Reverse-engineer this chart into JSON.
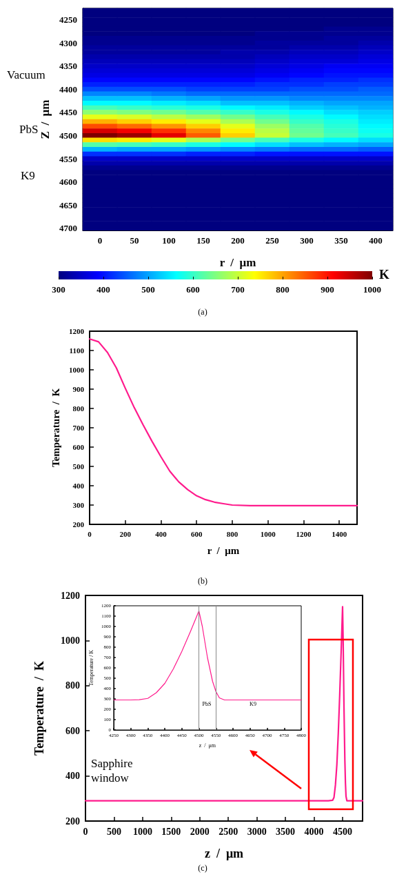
{
  "chart_data": [
    {
      "type": "heatmap",
      "xlabel": "r  /  μm",
      "ylabel": "Z  /  μm",
      "clabel": "K",
      "categories": [
        "0",
        "50",
        "100",
        "150",
        "200",
        "250",
        "300",
        "350",
        "400"
      ],
      "y_categories": [
        null,
        null,
        "4250",
        null,
        null,
        null,
        null,
        "4300",
        null,
        null,
        null,
        null,
        "4350",
        null,
        null,
        null,
        null,
        "4400",
        null,
        null,
        null,
        null,
        "4450",
        null,
        null,
        null,
        null,
        "4500",
        null,
        null,
        null,
        null,
        "4550",
        null,
        null,
        null,
        null,
        "4600",
        null,
        null,
        null,
        null,
        "4650",
        null,
        null,
        null,
        null,
        "4700"
      ],
      "cells": [
        [
          300,
          300,
          300,
          300,
          300,
          300,
          300,
          300,
          300
        ],
        [
          300,
          300,
          300,
          300,
          300,
          300,
          300,
          300,
          300
        ],
        [
          300,
          300,
          300,
          300,
          300,
          300,
          300,
          300,
          300
        ],
        [
          300,
          300,
          300,
          300,
          300,
          300,
          300,
          300,
          300
        ],
        [
          300,
          300,
          300,
          300,
          300,
          300,
          300,
          310,
          310
        ],
        [
          300,
          300,
          300,
          300,
          300,
          310,
          310,
          310,
          310
        ],
        [
          310,
          310,
          310,
          310,
          310,
          310,
          310,
          320,
          320
        ],
        [
          310,
          310,
          310,
          310,
          310,
          320,
          320,
          320,
          330
        ],
        [
          320,
          320,
          320,
          320,
          320,
          320,
          330,
          330,
          340
        ],
        [
          320,
          320,
          320,
          320,
          330,
          330,
          340,
          340,
          350
        ],
        [
          330,
          330,
          330,
          330,
          330,
          340,
          350,
          350,
          360
        ],
        [
          340,
          340,
          340,
          340,
          340,
          350,
          360,
          360,
          370
        ],
        [
          350,
          350,
          350,
          350,
          350,
          360,
          370,
          380,
          380
        ],
        [
          360,
          360,
          360,
          360,
          360,
          370,
          380,
          390,
          390
        ],
        [
          370,
          370,
          370,
          370,
          370,
          380,
          390,
          400,
          400
        ],
        [
          390,
          390,
          390,
          390,
          390,
          400,
          410,
          410,
          420
        ],
        [
          410,
          410,
          410,
          410,
          410,
          420,
          420,
          430,
          430
        ],
        [
          440,
          440,
          440,
          430,
          430,
          430,
          440,
          440,
          450
        ],
        [
          480,
          480,
          470,
          460,
          460,
          460,
          460,
          460,
          460
        ],
        [
          520,
          520,
          510,
          500,
          490,
          490,
          480,
          480,
          480
        ],
        [
          560,
          560,
          550,
          540,
          520,
          520,
          510,
          500,
          500
        ],
        [
          610,
          600,
          590,
          580,
          560,
          550,
          530,
          520,
          510
        ],
        [
          660,
          650,
          640,
          620,
          600,
          580,
          560,
          540,
          530
        ],
        [
          720,
          710,
          690,
          670,
          640,
          610,
          580,
          560,
          540
        ],
        [
          790,
          770,
          750,
          720,
          680,
          640,
          600,
          580,
          550
        ],
        [
          860,
          840,
          810,
          770,
          720,
          670,
          620,
          590,
          560
        ],
        [
          940,
          920,
          880,
          820,
          750,
          690,
          630,
          600,
          570
        ],
        [
          1000,
          980,
          930,
          850,
          770,
          700,
          640,
          610,
          580
        ],
        [
          760,
          750,
          720,
          680,
          640,
          610,
          580,
          560,
          540
        ],
        [
          620,
          610,
          600,
          580,
          560,
          540,
          520,
          510,
          500
        ],
        [
          510,
          500,
          500,
          490,
          480,
          470,
          460,
          460,
          450
        ],
        [
          420,
          420,
          420,
          410,
          410,
          400,
          400,
          400,
          400
        ],
        [
          350,
          350,
          350,
          350,
          350,
          350,
          350,
          350,
          350
        ],
        [
          330,
          330,
          330,
          330,
          330,
          330,
          330,
          330,
          330
        ],
        [
          310,
          310,
          310,
          310,
          310,
          310,
          310,
          310,
          310
        ],
        [
          300,
          300,
          300,
          300,
          300,
          300,
          300,
          300,
          300
        ],
        [
          300,
          300,
          300,
          300,
          300,
          300,
          300,
          300,
          300
        ],
        [
          300,
          300,
          300,
          300,
          300,
          300,
          300,
          300,
          300
        ],
        [
          300,
          300,
          300,
          300,
          300,
          300,
          300,
          300,
          300
        ],
        [
          300,
          300,
          300,
          300,
          300,
          300,
          300,
          300,
          300
        ],
        [
          300,
          300,
          300,
          300,
          300,
          300,
          300,
          300,
          300
        ],
        [
          300,
          300,
          300,
          300,
          300,
          300,
          300,
          300,
          300
        ],
        [
          300,
          300,
          300,
          300,
          300,
          300,
          300,
          300,
          300
        ],
        [
          300,
          300,
          300,
          300,
          300,
          300,
          300,
          300,
          300
        ],
        [
          300,
          300,
          300,
          300,
          300,
          300,
          300,
          300,
          300
        ],
        [
          300,
          300,
          300,
          300,
          300,
          300,
          300,
          300,
          300
        ],
        [
          300,
          300,
          300,
          300,
          300,
          300,
          300,
          300,
          300
        ],
        [
          300,
          300,
          300,
          300,
          300,
          300,
          300,
          300,
          300
        ]
      ],
      "clim": [
        300,
        1000
      ],
      "cticks": [
        300,
        400,
        500,
        600,
        700,
        800,
        900,
        1000
      ],
      "annotations": [
        "Vacuum",
        "PbS",
        "K9",
        "(a)"
      ]
    },
    {
      "type": "line",
      "xlabel": "r  /  μm",
      "ylabel": "Temperature  /  K",
      "x": [
        0,
        50,
        100,
        150,
        200,
        250,
        300,
        350,
        400,
        450,
        500,
        550,
        600,
        650,
        700,
        750,
        800,
        900,
        1500
      ],
      "values": [
        1160,
        1145,
        1090,
        1010,
        905,
        805,
        715,
        630,
        550,
        475,
        420,
        380,
        348,
        328,
        315,
        307,
        300,
        297,
        297
      ],
      "color": "#ff1a8c",
      "xlim": [
        0,
        1500
      ],
      "xticks": [
        0,
        200,
        400,
        600,
        800,
        1000,
        1200,
        1400
      ],
      "ylim": [
        200,
        1200
      ],
      "yticks": [
        200,
        300,
        400,
        500,
        600,
        700,
        800,
        900,
        1000,
        1100,
        1200
      ],
      "annotations": [
        "(b)"
      ]
    },
    {
      "type": "line",
      "xlabel": "z  /  μm",
      "ylabel": "Temperature  /  K",
      "x": [
        0,
        4250,
        4325,
        4350,
        4375,
        4400,
        4425,
        4450,
        4475,
        4500,
        4510,
        4525,
        4540,
        4550,
        4560,
        4575,
        4850
      ],
      "values": [
        290,
        290,
        292,
        305,
        360,
        450,
        590,
        760,
        950,
        1150,
        1000,
        700,
        470,
        370,
        310,
        290,
        290
      ],
      "color": "#ff1a8c",
      "xlim": [
        0,
        4850
      ],
      "xticks": [
        0,
        500,
        1000,
        1500,
        2000,
        2500,
        3000,
        3500,
        4000,
        4500
      ],
      "ylim": [
        200,
        1200
      ],
      "yticks": [
        200,
        400,
        600,
        800,
        1000,
        1200
      ],
      "annotations": [
        "Sapphire window",
        "(c)"
      ]
    },
    {
      "type": "line",
      "xlabel": "z  /  μm",
      "ylabel": "Temperature / K",
      "x": [
        4250,
        4300,
        4325,
        4350,
        4375,
        4400,
        4425,
        4450,
        4475,
        4500,
        4510,
        4525,
        4540,
        4550,
        4560,
        4575,
        4800
      ],
      "values": [
        290,
        290,
        292,
        305,
        360,
        450,
        590,
        760,
        950,
        1150,
        1000,
        700,
        470,
        370,
        310,
        290,
        290
      ],
      "color": "#ff1a8c",
      "xlim": [
        4250,
        4800
      ],
      "xticks": [
        4250,
        4300,
        4350,
        4400,
        4450,
        4500,
        4550,
        4600,
        4650,
        4700,
        4750,
        4800
      ],
      "ylim": [
        0,
        1200
      ],
      "yticks": [
        0,
        100,
        200,
        300,
        400,
        500,
        600,
        700,
        800,
        900,
        1000,
        1100,
        1200
      ],
      "ref_lines": [
        {
          "axis": "x",
          "value": 4500,
          "color": "#888888"
        },
        {
          "axis": "x",
          "value": 4550,
          "color": "#888888"
        }
      ],
      "annotations": [
        "PbS",
        "K9"
      ]
    }
  ]
}
